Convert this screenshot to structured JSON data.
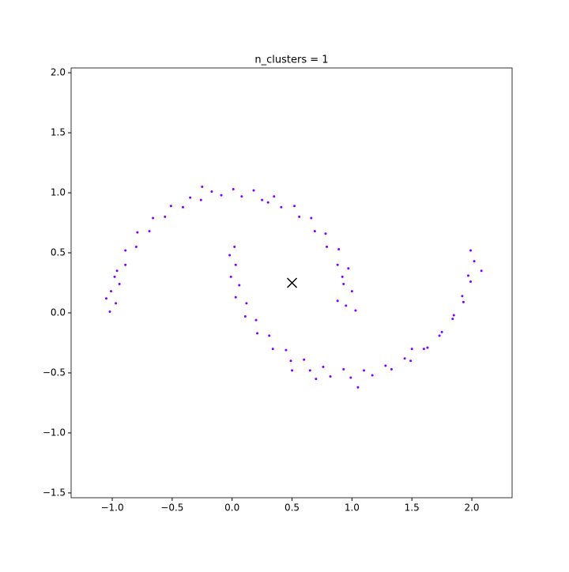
{
  "chart_data": {
    "type": "scatter",
    "title": "n_clusters = 1",
    "xlim": [
      -1.343,
      2.336
    ],
    "ylim": [
      -1.54,
      2.04
    ],
    "xticks": [
      {
        "value": -1.0,
        "label": "−1.0"
      },
      {
        "value": -0.5,
        "label": "−0.5"
      },
      {
        "value": 0.0,
        "label": "0.0"
      },
      {
        "value": 0.5,
        "label": "0.5"
      },
      {
        "value": 1.0,
        "label": "1.0"
      },
      {
        "value": 1.5,
        "label": "1.5"
      },
      {
        "value": 2.0,
        "label": "2.0"
      }
    ],
    "yticks": [
      {
        "value": -1.5,
        "label": "−1.5"
      },
      {
        "value": -1.0,
        "label": "−1.0"
      },
      {
        "value": -0.5,
        "label": "−0.5"
      },
      {
        "value": 0.0,
        "label": "0.0"
      },
      {
        "value": 0.5,
        "label": "0.5"
      },
      {
        "value": 1.0,
        "label": "1.0"
      },
      {
        "value": 1.5,
        "label": "1.5"
      },
      {
        "value": 2.0,
        "label": "2.0"
      }
    ],
    "series": [
      {
        "color": "#8000ff",
        "marker": "dot",
        "x": [
          1.03,
          0.95,
          1.0,
          0.93,
          0.97,
          0.88,
          0.89,
          0.79,
          0.78,
          0.69,
          0.66,
          0.56,
          0.52,
          0.41,
          0.35,
          0.25,
          0.18,
          0.08,
          0.01,
          -0.09,
          -0.17,
          -0.26,
          -0.35,
          -0.41,
          -0.51,
          -0.56,
          -0.66,
          -0.69,
          -0.79,
          -0.8,
          -0.89,
          -0.89,
          -0.96,
          -0.94,
          -1.01,
          -0.97,
          -1.02,
          -1.05,
          -0.98,
          0.92,
          0.88,
          -0.25,
          0.3,
          -0.02,
          0.03,
          -0.01,
          0.06,
          0.03,
          0.12,
          0.11,
          0.2,
          0.21,
          0.31,
          0.34,
          0.45,
          0.49,
          0.6,
          0.65,
          0.76,
          0.82,
          0.93,
          0.99,
          1.1,
          1.17,
          1.28,
          1.33,
          1.44,
          1.49,
          1.6,
          1.63,
          1.73,
          1.75,
          1.84,
          1.85,
          1.93,
          1.92,
          1.99,
          1.97,
          2.02,
          1.99,
          1.05,
          0.02,
          2.08,
          0.5,
          1.5,
          0.7
        ],
        "y": [
          0.02,
          0.06,
          0.18,
          0.24,
          0.37,
          0.4,
          0.53,
          0.55,
          0.66,
          0.68,
          0.79,
          0.8,
          0.89,
          0.88,
          0.97,
          0.94,
          1.02,
          0.97,
          1.03,
          0.98,
          1.01,
          0.94,
          0.96,
          0.88,
          0.89,
          0.8,
          0.79,
          0.68,
          0.67,
          0.55,
          0.52,
          0.4,
          0.35,
          0.24,
          0.18,
          0.08,
          0.01,
          0.12,
          0.3,
          0.3,
          0.1,
          1.05,
          0.92,
          0.48,
          0.4,
          0.3,
          0.23,
          0.13,
          0.08,
          -0.03,
          -0.06,
          -0.17,
          -0.19,
          -0.3,
          -0.31,
          -0.4,
          -0.39,
          -0.48,
          -0.45,
          -0.53,
          -0.47,
          -0.54,
          -0.48,
          -0.52,
          -0.44,
          -0.47,
          -0.38,
          -0.4,
          -0.3,
          -0.29,
          -0.19,
          -0.16,
          -0.05,
          -0.02,
          0.09,
          0.14,
          0.26,
          0.31,
          0.43,
          0.52,
          -0.62,
          0.55,
          0.35,
          -0.48,
          -0.3,
          -0.55
        ]
      },
      {
        "color": "#000000",
        "marker": "x",
        "x": [
          0.5
        ],
        "y": [
          0.25
        ]
      }
    ]
  }
}
